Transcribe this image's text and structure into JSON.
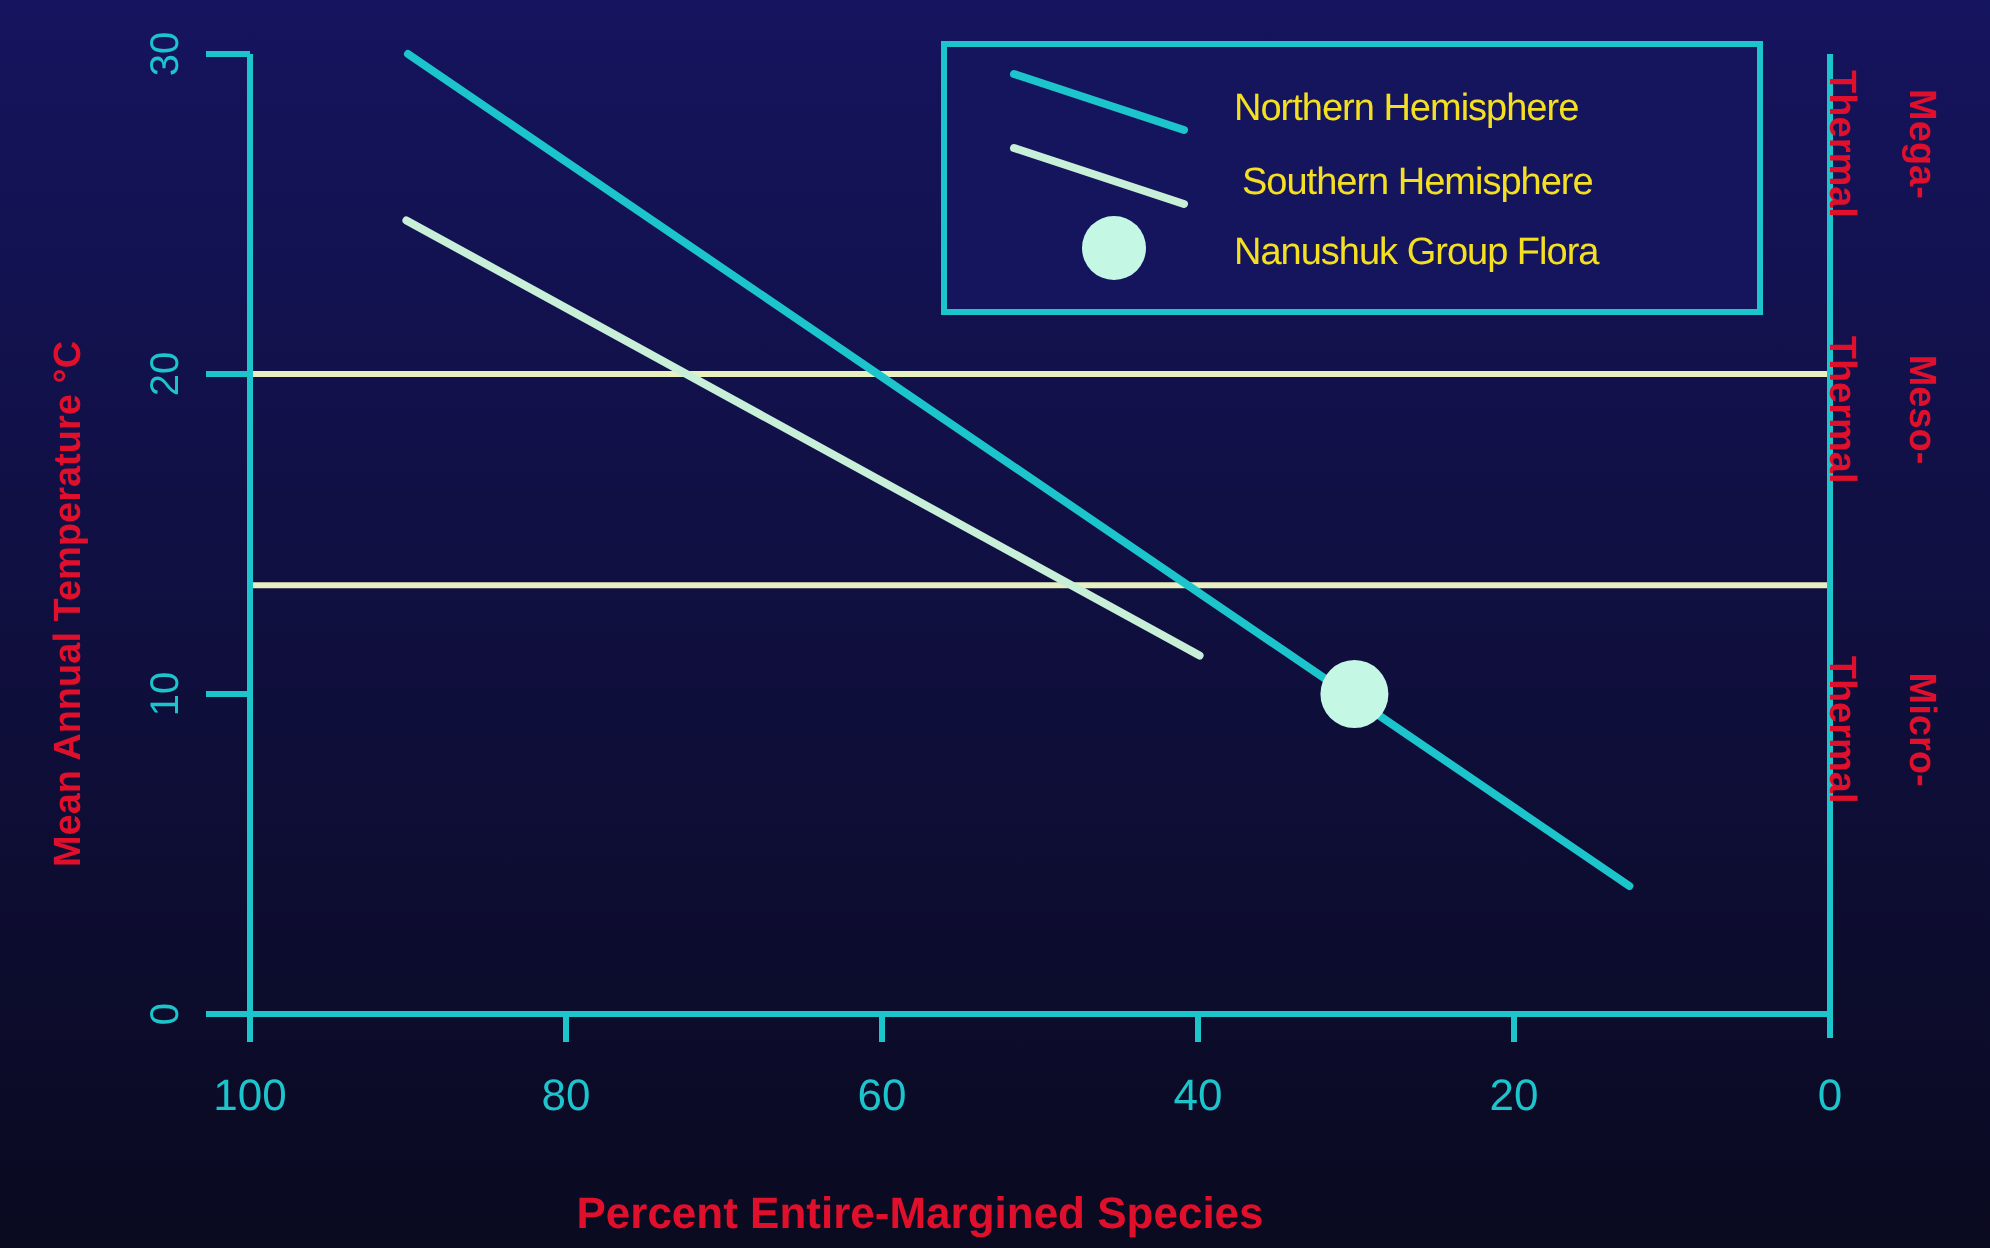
{
  "chart_data": {
    "type": "line",
    "xlabel": "Percent Entire-Margined Species",
    "ylabel": "Mean Annual Temperature °C",
    "xlim": [
      100,
      0
    ],
    "xticks": [
      100,
      80,
      60,
      40,
      20,
      0
    ],
    "ylim": [
      0,
      30
    ],
    "yticks": [
      0,
      10,
      20,
      30
    ],
    "series": [
      {
        "name": "Northern Hemisphere",
        "color": "#1cc4cc",
        "x": [
          90,
          12.7
        ],
        "values": [
          30,
          4
        ]
      },
      {
        "name": "Southern Hemisphere",
        "color": "#c8f0d8",
        "x": [
          90.1,
          39.9
        ],
        "values": [
          24.8,
          11.2
        ]
      },
      {
        "name": "Nanushuk Group Flora",
        "type": "scatter",
        "color": "#c4f8e4",
        "marker": "circle",
        "x": [
          30.1
        ],
        "values": [
          10
        ]
      }
    ],
    "ref_lines": [
      {
        "axis": "y",
        "value": 20,
        "color": "#e8f0c0"
      },
      {
        "axis": "y",
        "value": 13.4,
        "color": "#e8f0c0"
      }
    ],
    "annotations": [
      "Mega-Thermal",
      "Meso-Thermal",
      "Micro-Thermal"
    ],
    "grid": false,
    "legend": "top right"
  }
}
